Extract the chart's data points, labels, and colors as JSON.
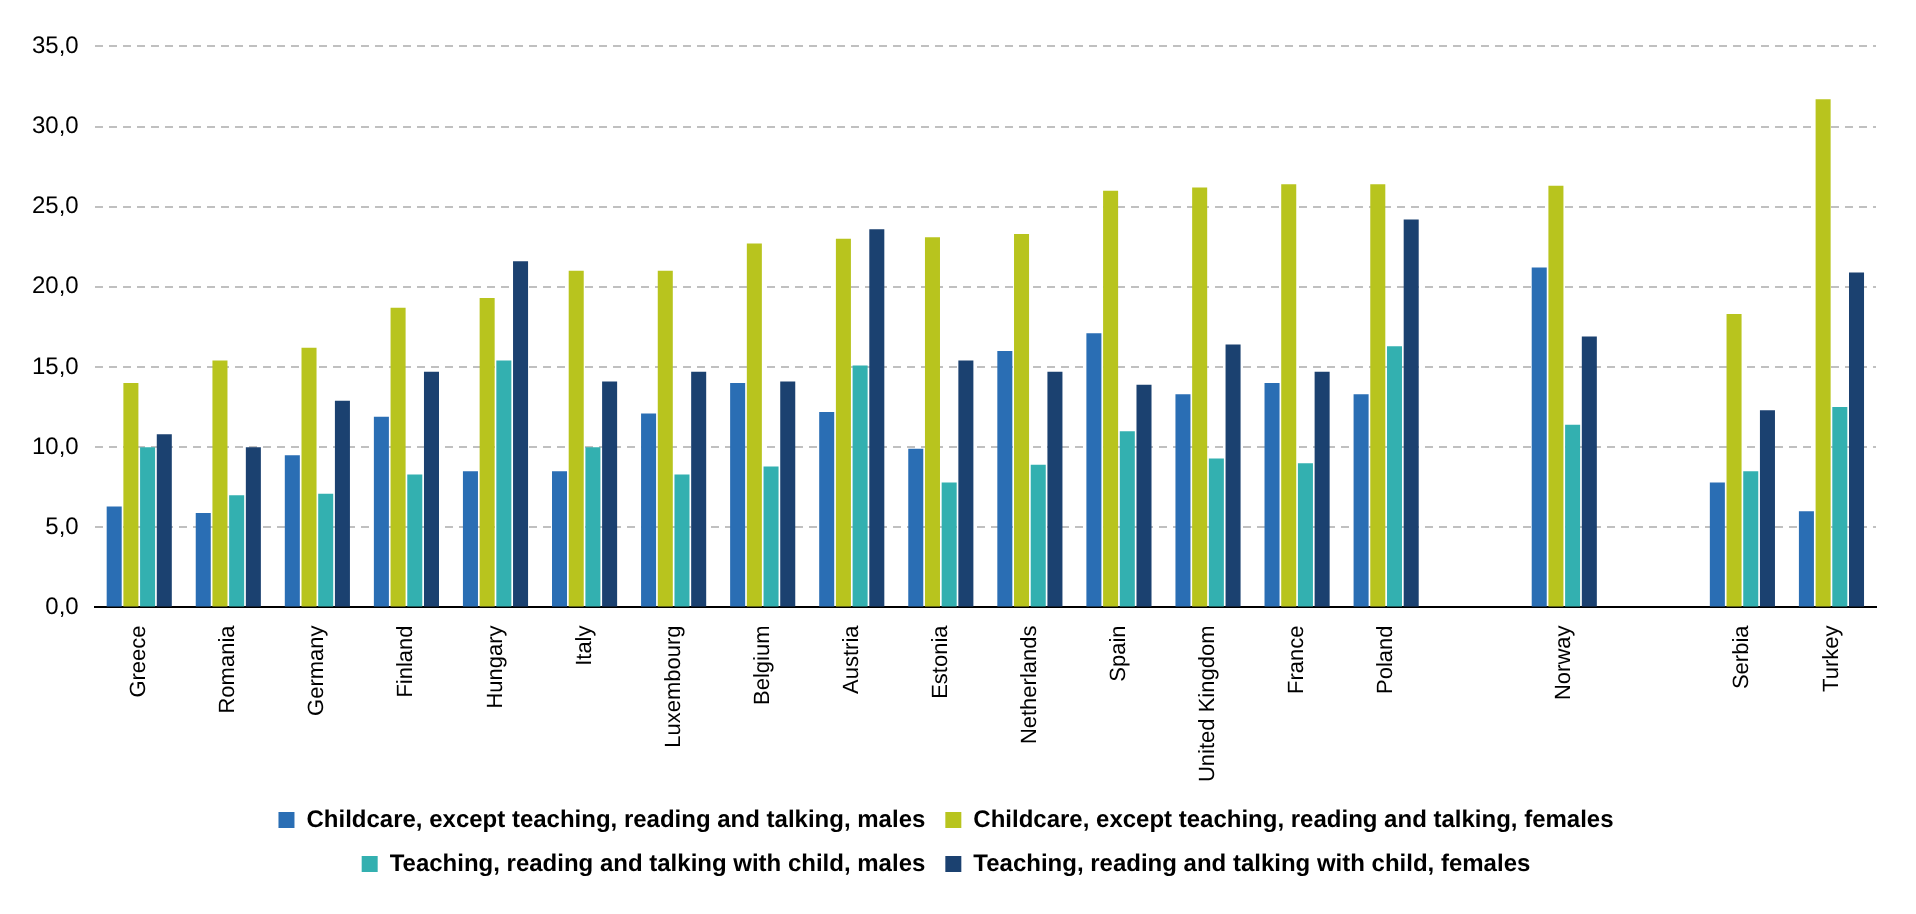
{
  "chart_data": {
    "type": "bar",
    "categories": [
      "Greece",
      "Romania",
      "Germany",
      "Finland",
      "Hungary",
      "Italy",
      "Luxembourg",
      "Belgium",
      "Austria",
      "Estonia",
      "Netherlands",
      "Spain",
      "United Kingdom",
      "France",
      "Poland",
      null,
      "Norway",
      null,
      "Serbia",
      "Turkey"
    ],
    "series": [
      {
        "name": "Childcare, except teaching, reading and talking, males",
        "color": "#2a6eb4",
        "values": [
          6.3,
          5.9,
          9.5,
          11.9,
          8.5,
          8.5,
          12.1,
          14.0,
          12.2,
          9.9,
          16.0,
          17.1,
          13.3,
          14.0,
          13.3,
          null,
          21.2,
          null,
          7.8,
          6.0
        ]
      },
      {
        "name": "Childcare, except teaching, reading and talking, females",
        "color": "#b8c41e",
        "values": [
          14.0,
          15.4,
          16.2,
          18.7,
          19.3,
          21.0,
          21.0,
          22.7,
          23.0,
          23.1,
          23.3,
          26.0,
          26.2,
          26.4,
          26.4,
          null,
          26.3,
          null,
          18.3,
          31.7
        ]
      },
      {
        "name": "Teaching, reading and talking with child, males",
        "color": "#33b0b0",
        "values": [
          10.0,
          7.0,
          7.1,
          8.3,
          15.4,
          10.0,
          8.3,
          8.8,
          15.1,
          7.8,
          8.9,
          11.0,
          9.3,
          9.0,
          16.3,
          null,
          11.4,
          null,
          8.5,
          12.5
        ]
      },
      {
        "name": "Teaching, reading and talking with child, females",
        "color": "#1b4170",
        "values": [
          10.8,
          10.0,
          12.9,
          14.7,
          21.6,
          14.1,
          14.7,
          14.1,
          23.6,
          15.4,
          14.7,
          13.9,
          16.4,
          14.7,
          24.2,
          null,
          16.9,
          null,
          12.3,
          20.9
        ]
      }
    ],
    "ylim": [
      0,
      35
    ],
    "yticks": [
      {
        "value": 0,
        "label": "0,0"
      },
      {
        "value": 5,
        "label": "5,0"
      },
      {
        "value": 10,
        "label": "10,0"
      },
      {
        "value": 15,
        "label": "15,0"
      },
      {
        "value": 20,
        "label": "20,0"
      },
      {
        "value": 25,
        "label": "25,0"
      },
      {
        "value": 30,
        "label": "30,0"
      },
      {
        "value": 35,
        "label": "35,0"
      }
    ],
    "grid": "y",
    "legend": "bottom"
  }
}
